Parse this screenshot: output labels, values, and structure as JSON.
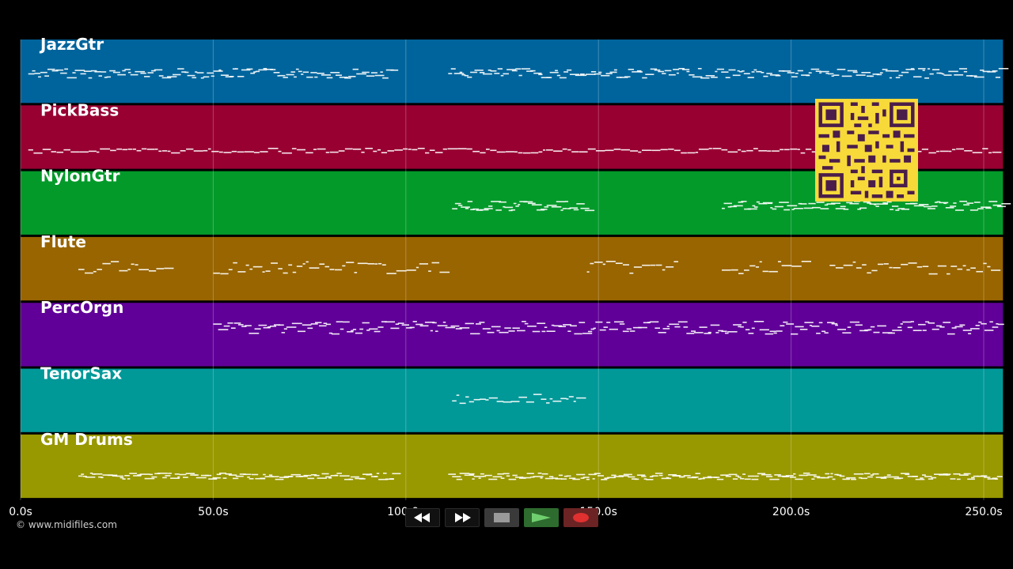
{
  "tracks": [
    {
      "name": "JazzGtr",
      "color": "#00649c"
    },
    {
      "name": "PickBass",
      "color": "#980032"
    },
    {
      "name": "NylonGtr",
      "color": "#039a2a"
    },
    {
      "name": "Flute",
      "color": "#986500"
    },
    {
      "name": "PercOrgn",
      "color": "#600098"
    },
    {
      "name": "TenorSax",
      "color": "#019898"
    },
    {
      "name": "GM Drums",
      "color": "#989800"
    }
  ],
  "timeline": {
    "max_seconds": 255,
    "ticks": [
      {
        "value": 0,
        "label": "0.0s"
      },
      {
        "value": 50,
        "label": "50.0s"
      },
      {
        "value": 100,
        "label": "100.0s"
      },
      {
        "value": 150,
        "label": "150.0s"
      },
      {
        "value": 200,
        "label": "200.0s"
      },
      {
        "value": 250,
        "label": "250.0s"
      }
    ]
  },
  "note_regions": [
    [
      [
        2,
        97
      ],
      [
        111,
        255
      ]
    ],
    [
      [
        2,
        255
      ]
    ],
    [
      [
        112,
        147
      ],
      [
        182,
        255
      ]
    ],
    [
      [
        15,
        39
      ],
      [
        50,
        109
      ],
      [
        147,
        170
      ],
      [
        182,
        204
      ],
      [
        210,
        254
      ]
    ],
    [
      [
        50,
        255
      ]
    ],
    [
      [
        112,
        146
      ]
    ],
    [
      [
        15,
        97
      ],
      [
        111,
        254
      ]
    ]
  ],
  "footer": {
    "copyright": "© www.midifiles.com"
  },
  "transport": {
    "rewind_icon": "rewind-icon",
    "forward_icon": "fast-forward-icon",
    "stop_icon": "stop-icon",
    "play_icon": "play-icon",
    "record_icon": "record-icon"
  },
  "overlay": {
    "qr_icon": "qr-code-icon",
    "qr_color": "#f7d93a"
  }
}
